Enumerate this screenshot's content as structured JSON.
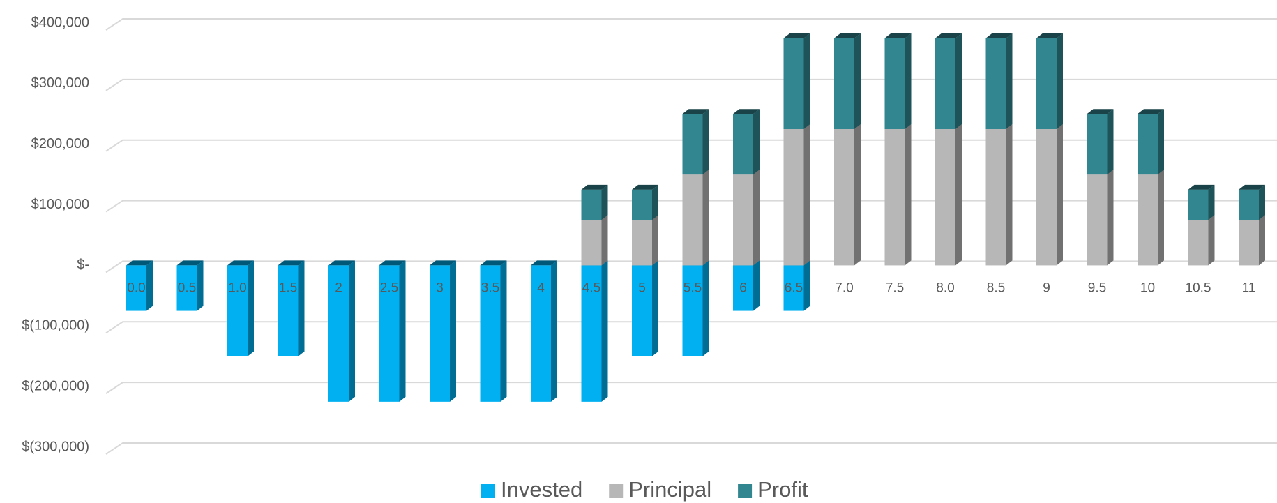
{
  "chart_data": {
    "type": "bar",
    "stacked": true,
    "categories": [
      "0.0",
      "0.5",
      "1.0",
      "1.5",
      "2",
      "2.5",
      "3",
      "3.5",
      "4",
      "4.5",
      "5",
      "5.5",
      "6",
      "6.5",
      "7.0",
      "7.5",
      "8.0",
      "8.5",
      "9",
      "9.5",
      "10",
      "10.5",
      "11"
    ],
    "series": [
      {
        "name": "Invested",
        "color": "#00b0f0",
        "values": [
          -75000,
          -75000,
          -150000,
          -150000,
          -225000,
          -225000,
          -225000,
          -225000,
          -225000,
          -225000,
          -150000,
          -150000,
          -75000,
          -75000,
          0,
          0,
          0,
          0,
          0,
          0,
          0,
          0,
          0
        ]
      },
      {
        "name": "Principal",
        "color": "#b7b7b7",
        "values": [
          0,
          0,
          0,
          0,
          0,
          0,
          0,
          0,
          0,
          75000,
          75000,
          150000,
          150000,
          225000,
          225000,
          225000,
          225000,
          225000,
          225000,
          150000,
          150000,
          75000,
          75000
        ]
      },
      {
        "name": "Profit",
        "color": "#31868f",
        "values": [
          0,
          0,
          0,
          0,
          0,
          0,
          0,
          0,
          0,
          50000,
          50000,
          100000,
          100000,
          150000,
          150000,
          150000,
          150000,
          150000,
          150000,
          100000,
          100000,
          50000,
          50000
        ]
      }
    ],
    "ylim": [
      -300000,
      400000
    ],
    "yticks": [
      {
        "value": 400000,
        "label": "$400,000"
      },
      {
        "value": 300000,
        "label": "$300,000"
      },
      {
        "value": 200000,
        "label": "$200,000"
      },
      {
        "value": 100000,
        "label": "$100,000"
      },
      {
        "value": 0,
        "label": "$-"
      },
      {
        "value": -100000,
        "label": "$(100,000)"
      },
      {
        "value": -200000,
        "label": "$(200,000)"
      },
      {
        "value": -300000,
        "label": "$(300,000)"
      }
    ],
    "grid": true,
    "legend": "bottom"
  }
}
